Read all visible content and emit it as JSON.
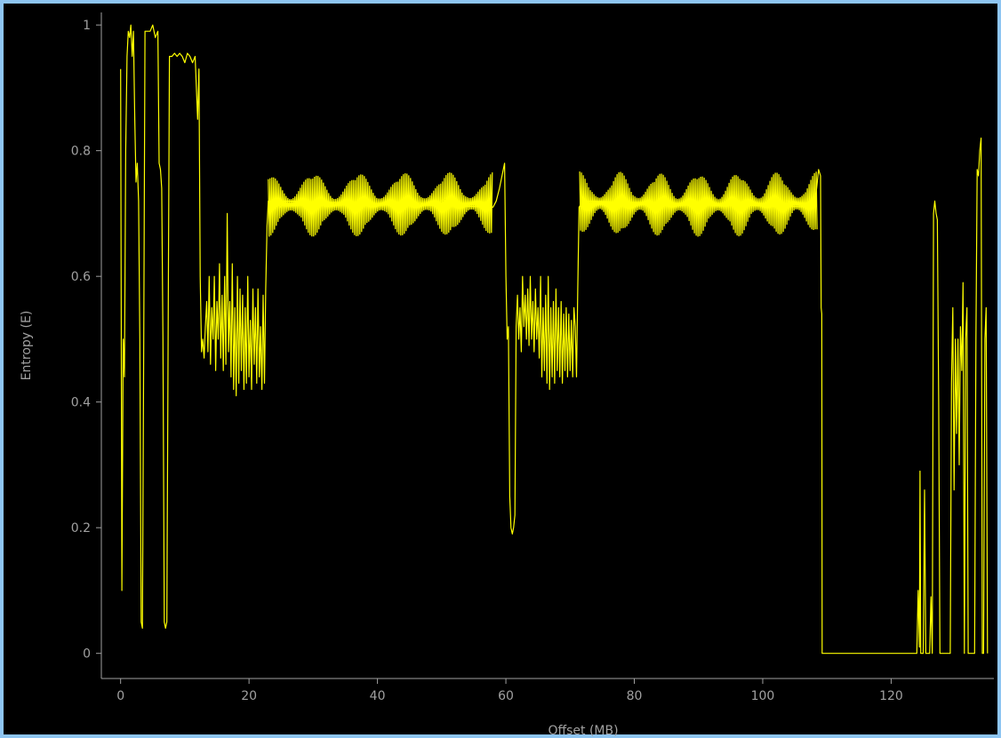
{
  "colors": {
    "background": "#000000",
    "frame": "#8ec5f2",
    "axis": "#a0a0a0",
    "series": "#ffff00"
  },
  "chart_data": {
    "type": "line",
    "title": "",
    "xlabel": "Offset (MB)",
    "ylabel": "Entropy (E)",
    "xlim": [
      -3,
      136
    ],
    "ylim": [
      -0.04,
      1.02
    ],
    "x_ticks": [
      0,
      20,
      40,
      60,
      80,
      100,
      120
    ],
    "y_ticks": [
      0,
      0.2,
      0.4,
      0.6,
      0.8,
      1
    ],
    "y_tick_labels": [
      "0",
      "0.2",
      "0.4",
      "0.6",
      "0.8",
      "1"
    ],
    "grid": false,
    "legend": "none",
    "series": [
      {
        "color": "#ffff00",
        "style": "line",
        "points": [
          [
            0.0,
            0.93
          ],
          [
            0.2,
            0.1
          ],
          [
            0.4,
            0.5
          ],
          [
            0.6,
            0.44
          ],
          [
            0.8,
            0.8
          ],
          [
            1.0,
            0.95
          ],
          [
            1.2,
            0.99
          ],
          [
            1.4,
            0.98
          ],
          [
            1.6,
            1.0
          ],
          [
            1.8,
            0.95
          ],
          [
            2.0,
            0.99
          ],
          [
            2.2,
            0.85
          ],
          [
            2.4,
            0.75
          ],
          [
            2.6,
            0.78
          ],
          [
            2.8,
            0.72
          ],
          [
            3.0,
            0.5
          ],
          [
            3.2,
            0.05
          ],
          [
            3.4,
            0.04
          ],
          [
            3.6,
            0.5
          ],
          [
            3.8,
            0.99
          ],
          [
            4.2,
            0.99
          ],
          [
            4.6,
            0.99
          ],
          [
            5.0,
            1.0
          ],
          [
            5.4,
            0.98
          ],
          [
            5.8,
            0.99
          ],
          [
            6.0,
            0.78
          ],
          [
            6.2,
            0.77
          ],
          [
            6.4,
            0.74
          ],
          [
            6.6,
            0.5
          ],
          [
            6.8,
            0.05
          ],
          [
            7.0,
            0.04
          ],
          [
            7.2,
            0.05
          ],
          [
            7.4,
            0.5
          ],
          [
            7.6,
            0.95
          ],
          [
            8.0,
            0.95
          ],
          [
            8.4,
            0.955
          ],
          [
            8.8,
            0.95
          ],
          [
            9.2,
            0.955
          ],
          [
            9.6,
            0.95
          ],
          [
            10.0,
            0.94
          ],
          [
            10.4,
            0.955
          ],
          [
            10.8,
            0.95
          ],
          [
            11.2,
            0.94
          ],
          [
            11.6,
            0.95
          ],
          [
            11.8,
            0.9
          ],
          [
            12.0,
            0.85
          ],
          [
            12.2,
            0.93
          ],
          [
            12.4,
            0.6
          ],
          [
            12.6,
            0.48
          ],
          [
            12.8,
            0.5
          ],
          [
            13.0,
            0.47
          ],
          [
            13.2,
            0.52
          ],
          [
            13.4,
            0.56
          ],
          [
            13.6,
            0.48
          ],
          [
            13.8,
            0.6
          ],
          [
            14.0,
            0.46
          ],
          [
            14.2,
            0.55
          ],
          [
            14.4,
            0.5
          ],
          [
            14.6,
            0.6
          ],
          [
            14.8,
            0.45
          ],
          [
            15.0,
            0.56
          ],
          [
            15.2,
            0.5
          ],
          [
            15.4,
            0.62
          ],
          [
            15.6,
            0.47
          ],
          [
            15.8,
            0.57
          ],
          [
            16.0,
            0.45
          ],
          [
            16.2,
            0.6
          ],
          [
            16.4,
            0.46
          ],
          [
            16.6,
            0.7
          ],
          [
            16.8,
            0.48
          ],
          [
            17.0,
            0.56
          ],
          [
            17.2,
            0.44
          ],
          [
            17.4,
            0.62
          ],
          [
            17.6,
            0.42
          ],
          [
            17.8,
            0.55
          ],
          [
            18.0,
            0.41
          ],
          [
            18.2,
            0.6
          ],
          [
            18.4,
            0.43
          ],
          [
            18.6,
            0.58
          ],
          [
            18.8,
            0.45
          ],
          [
            19.0,
            0.57
          ],
          [
            19.2,
            0.42
          ],
          [
            19.4,
            0.55
          ],
          [
            19.6,
            0.43
          ],
          [
            19.8,
            0.6
          ],
          [
            20.0,
            0.44
          ],
          [
            20.2,
            0.53
          ],
          [
            20.4,
            0.42
          ],
          [
            20.6,
            0.58
          ],
          [
            20.8,
            0.46
          ],
          [
            21.0,
            0.55
          ],
          [
            21.2,
            0.43
          ],
          [
            21.4,
            0.58
          ],
          [
            21.6,
            0.44
          ],
          [
            21.8,
            0.52
          ],
          [
            22.0,
            0.42
          ],
          [
            22.2,
            0.57
          ],
          [
            22.4,
            0.43
          ],
          [
            22.6,
            0.58
          ],
          [
            22.8,
            0.68
          ],
          [
            23.0,
            0.72
          ],
          [
            23.4,
            0.71
          ],
          [
            24.0,
            0.72
          ],
          [
            25.0,
            0.71
          ],
          [
            25.5,
            0.72
          ],
          [
            58.0,
            0.71
          ],
          [
            58.5,
            0.72
          ],
          [
            59.0,
            0.74
          ],
          [
            59.4,
            0.76
          ],
          [
            59.8,
            0.78
          ],
          [
            60.0,
            0.6
          ],
          [
            60.2,
            0.5
          ],
          [
            60.4,
            0.52
          ],
          [
            60.6,
            0.25
          ],
          [
            60.8,
            0.2
          ],
          [
            61.0,
            0.19
          ],
          [
            61.2,
            0.2
          ],
          [
            61.4,
            0.22
          ],
          [
            61.6,
            0.52
          ],
          [
            61.8,
            0.57
          ],
          [
            62.0,
            0.5
          ],
          [
            62.2,
            0.55
          ],
          [
            62.4,
            0.48
          ],
          [
            62.6,
            0.6
          ],
          [
            62.8,
            0.52
          ],
          [
            63.0,
            0.57
          ],
          [
            63.2,
            0.5
          ],
          [
            63.4,
            0.58
          ],
          [
            63.6,
            0.49
          ],
          [
            63.8,
            0.6
          ],
          [
            64.0,
            0.5
          ],
          [
            64.2,
            0.56
          ],
          [
            64.4,
            0.48
          ],
          [
            64.6,
            0.58
          ],
          [
            64.8,
            0.5
          ],
          [
            65.0,
            0.55
          ],
          [
            65.2,
            0.47
          ],
          [
            65.4,
            0.6
          ],
          [
            65.6,
            0.44
          ],
          [
            65.8,
            0.55
          ],
          [
            66.0,
            0.45
          ],
          [
            66.2,
            0.57
          ],
          [
            66.4,
            0.43
          ],
          [
            66.6,
            0.6
          ],
          [
            66.8,
            0.42
          ],
          [
            67.0,
            0.55
          ],
          [
            67.2,
            0.44
          ],
          [
            67.4,
            0.56
          ],
          [
            67.6,
            0.43
          ],
          [
            67.8,
            0.58
          ],
          [
            68.0,
            0.45
          ],
          [
            68.2,
            0.55
          ],
          [
            68.4,
            0.44
          ],
          [
            68.6,
            0.56
          ],
          [
            68.8,
            0.43
          ],
          [
            69.0,
            0.54
          ],
          [
            69.2,
            0.45
          ],
          [
            69.4,
            0.55
          ],
          [
            69.6,
            0.44
          ],
          [
            69.8,
            0.54
          ],
          [
            70.0,
            0.45
          ],
          [
            70.2,
            0.53
          ],
          [
            70.4,
            0.44
          ],
          [
            70.6,
            0.55
          ],
          [
            70.8,
            0.52
          ],
          [
            71.0,
            0.44
          ],
          [
            71.2,
            0.58
          ],
          [
            71.4,
            0.71
          ],
          [
            72.0,
            0.72
          ],
          [
            108.0,
            0.71
          ],
          [
            108.4,
            0.74
          ],
          [
            108.7,
            0.77
          ],
          [
            109.0,
            0.76
          ],
          [
            109.1,
            0.55
          ],
          [
            109.2,
            0.54
          ],
          [
            109.25,
            0.0
          ],
          [
            124.0,
            0.0
          ],
          [
            124.2,
            0.1
          ],
          [
            124.4,
            0.01
          ],
          [
            124.5,
            0.29
          ],
          [
            124.6,
            0.0
          ],
          [
            125.0,
            0.0
          ],
          [
            125.2,
            0.26
          ],
          [
            125.4,
            0.0
          ],
          [
            126.0,
            0.0
          ],
          [
            126.2,
            0.09
          ],
          [
            126.4,
            0.0
          ],
          [
            126.6,
            0.7
          ],
          [
            126.8,
            0.72
          ],
          [
            127.0,
            0.7
          ],
          [
            127.2,
            0.69
          ],
          [
            127.4,
            0.4
          ],
          [
            127.6,
            0.0
          ],
          [
            128.0,
            0.0
          ],
          [
            129.0,
            0.0
          ],
          [
            129.2,
            0.0
          ],
          [
            129.4,
            0.43
          ],
          [
            129.6,
            0.55
          ],
          [
            129.8,
            0.26
          ],
          [
            130.0,
            0.5
          ],
          [
            130.2,
            0.35
          ],
          [
            130.4,
            0.5
          ],
          [
            130.6,
            0.3
          ],
          [
            130.8,
            0.52
          ],
          [
            131.0,
            0.45
          ],
          [
            131.2,
            0.59
          ],
          [
            131.4,
            0.0
          ],
          [
            131.6,
            0.5
          ],
          [
            131.8,
            0.55
          ],
          [
            132.0,
            0.0
          ],
          [
            133.0,
            0.0
          ],
          [
            133.2,
            0.5
          ],
          [
            133.4,
            0.77
          ],
          [
            133.6,
            0.76
          ],
          [
            133.8,
            0.8
          ],
          [
            134.0,
            0.82
          ],
          [
            134.2,
            0.0
          ],
          [
            134.4,
            0.0
          ],
          [
            134.6,
            0.5
          ],
          [
            134.8,
            0.55
          ],
          [
            135.0,
            0.0
          ]
        ]
      },
      {
        "color": "#ffff00",
        "style": "band",
        "note_free": true,
        "x": [
          23.0,
          58.0
        ],
        "center": 0.715,
        "half_width_min": 0.01,
        "half_width_max": 0.052,
        "cycles": 5
      },
      {
        "color": "#ffff00",
        "style": "band",
        "x": [
          71.5,
          108.5
        ],
        "center": 0.715,
        "half_width_min": 0.01,
        "half_width_max": 0.052,
        "cycles": 6
      }
    ]
  }
}
